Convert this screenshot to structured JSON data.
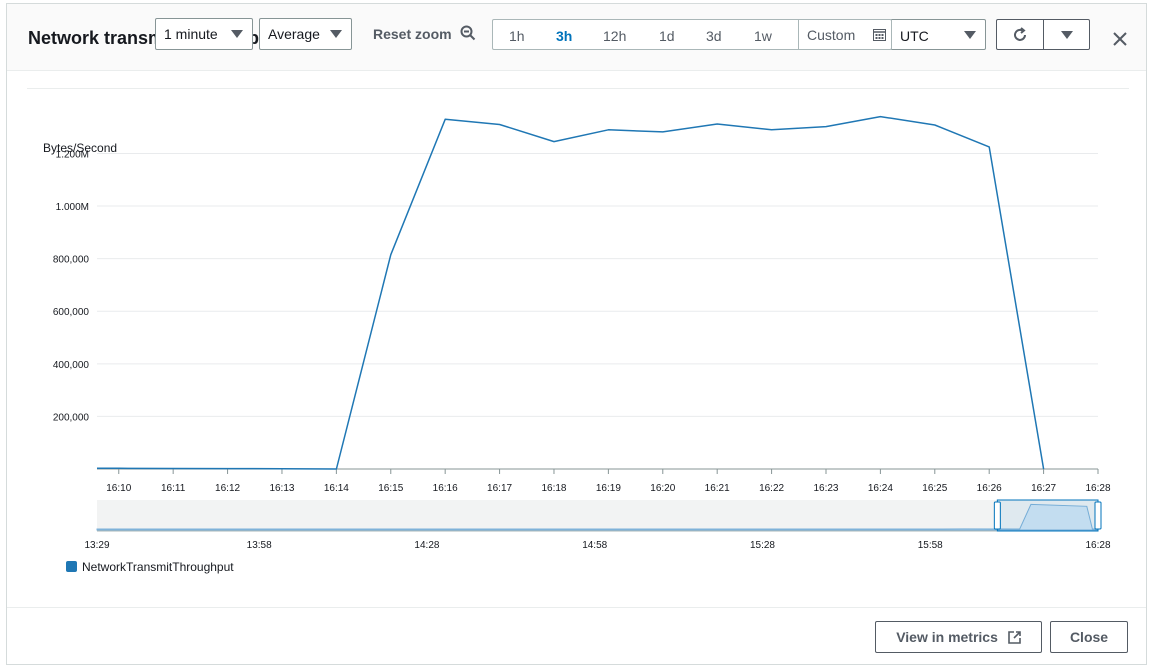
{
  "header": {
    "title": "Network transmit throughput",
    "period": "1 minute",
    "statistic": "Average",
    "reset_zoom": "Reset zoom",
    "ranges": [
      "1h",
      "3h",
      "12h",
      "1d",
      "3d",
      "1w"
    ],
    "active_range": "3h",
    "custom": "Custom",
    "timezone": "UTC"
  },
  "footer": {
    "view_in_metrics": "View in metrics",
    "close": "Close"
  },
  "icons": {
    "zoom": "zoom-out-icon",
    "calendar": "calendar-icon",
    "refresh": "refresh-icon",
    "dropdown": "caret-down-icon",
    "close": "close-icon",
    "external": "external-link-icon"
  },
  "colors": {
    "series": "#1f77b4",
    "active": "#0073bb"
  },
  "chart_data": [
    {
      "type": "line",
      "ylabel": "Bytes/Second",
      "ylim": [
        0,
        1350000
      ],
      "yticks": [
        200000,
        400000,
        600000,
        800000,
        1000000,
        1200000
      ],
      "ytick_labels": [
        "200,000",
        "400,000",
        "600,000",
        "800,000",
        "1.000M",
        "1.200M"
      ],
      "x": [
        "16:10",
        "16:11",
        "16:12",
        "16:13",
        "16:14",
        "16:15",
        "16:16",
        "16:17",
        "16:18",
        "16:19",
        "16:20",
        "16:21",
        "16:22",
        "16:23",
        "16:24",
        "16:25",
        "16:26",
        "16:27",
        "16:28"
      ],
      "xlim": [
        "16:09:36",
        "16:28"
      ],
      "series": [
        {
          "name": "NetworkTransmitThroughput",
          "x": [
            "16:09:36",
            "16:10",
            "16:11",
            "16:12",
            "16:13",
            "16:14",
            "16:15",
            "16:16",
            "16:17",
            "16:18",
            "16:19",
            "16:20",
            "16:21",
            "16:22",
            "16:23",
            "16:24",
            "16:25",
            "16:26",
            "16:27"
          ],
          "values": [
            3000,
            2500,
            2000,
            1500,
            1000,
            0,
            815000,
            1330000,
            1310000,
            1245000,
            1290000,
            1282000,
            1312000,
            1290000,
            1302000,
            1340000,
            1308000,
            1225000,
            0
          ]
        }
      ],
      "grid": true,
      "legend": "bottom-left"
    },
    {
      "type": "area",
      "x_ticks": [
        "13:29",
        "13:58",
        "14:28",
        "14:58",
        "15:28",
        "15:58",
        "16:28"
      ],
      "xlim": [
        "13:29",
        "16:28"
      ],
      "selection": [
        "16:10",
        "16:28"
      ],
      "series": [
        {
          "name": "NetworkTransmitThroughput",
          "x": [
            "13:29",
            "16:00",
            "16:04",
            "16:14",
            "16:16",
            "16:26",
            "16:27",
            "16:28"
          ],
          "values": [
            0,
            0,
            5000,
            0,
            1330000,
            1225000,
            0,
            0
          ]
        }
      ]
    }
  ]
}
